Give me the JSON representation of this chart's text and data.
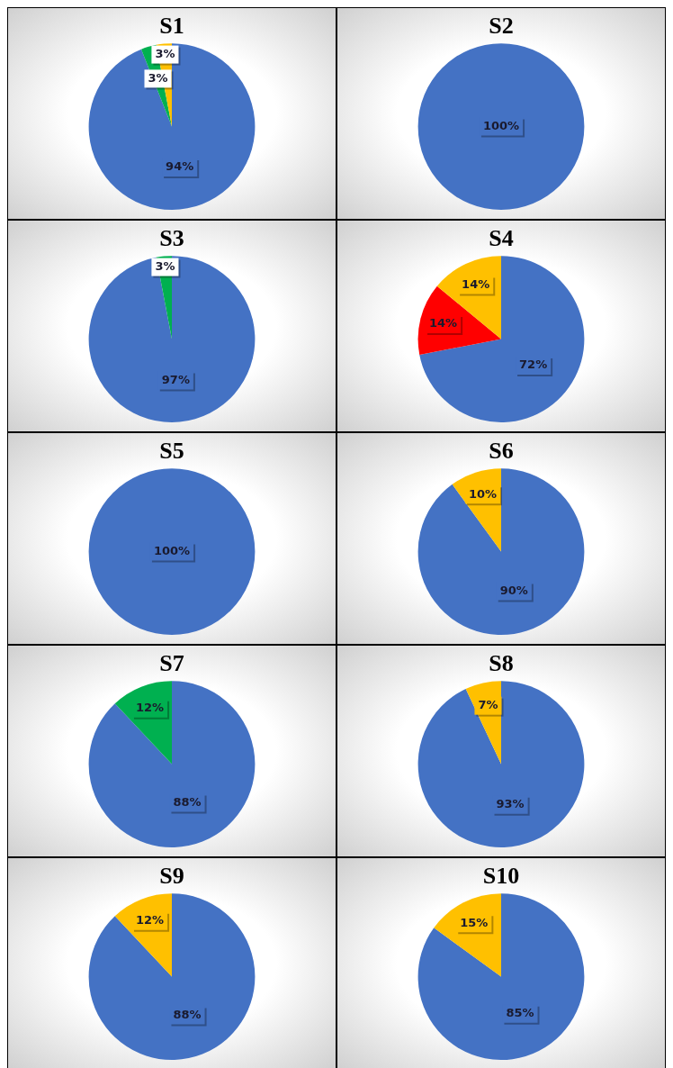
{
  "chart_data": [
    {
      "type": "pie",
      "title": "S1",
      "categories": [
        null,
        null,
        null
      ],
      "values": [
        94,
        3,
        3
      ],
      "colors": [
        "#4472c4",
        "#00b050",
        "#ffc000"
      ],
      "value_labels": [
        "94%",
        "3%",
        "3%"
      ]
    },
    {
      "type": "pie",
      "title": "S2",
      "categories": [
        null
      ],
      "values": [
        100
      ],
      "colors": [
        "#4472c4"
      ],
      "value_labels": [
        "100%"
      ]
    },
    {
      "type": "pie",
      "title": "S3",
      "categories": [
        null,
        null
      ],
      "values": [
        97,
        3
      ],
      "colors": [
        "#4472c4",
        "#00b050"
      ],
      "value_labels": [
        "97%",
        "3%"
      ]
    },
    {
      "type": "pie",
      "title": "S4",
      "categories": [
        null,
        null,
        null
      ],
      "values": [
        72,
        14,
        14
      ],
      "colors": [
        "#4472c4",
        "#ff0000",
        "#ffc000"
      ],
      "value_labels": [
        "72%",
        "14%",
        "14%"
      ]
    },
    {
      "type": "pie",
      "title": "S5",
      "categories": [
        null
      ],
      "values": [
        100
      ],
      "colors": [
        "#4472c4"
      ],
      "value_labels": [
        "100%"
      ]
    },
    {
      "type": "pie",
      "title": "S6",
      "categories": [
        null,
        null
      ],
      "values": [
        90,
        10
      ],
      "colors": [
        "#4472c4",
        "#ffc000"
      ],
      "value_labels": [
        "90%",
        "10%"
      ]
    },
    {
      "type": "pie",
      "title": "S7",
      "categories": [
        null,
        null
      ],
      "values": [
        88,
        12
      ],
      "colors": [
        "#4472c4",
        "#00b050"
      ],
      "value_labels": [
        "88%",
        "12%"
      ]
    },
    {
      "type": "pie",
      "title": "S8",
      "categories": [
        null,
        null
      ],
      "values": [
        93,
        7
      ],
      "colors": [
        "#4472c4",
        "#ffc000"
      ],
      "value_labels": [
        "93%",
        "7%"
      ]
    },
    {
      "type": "pie",
      "title": "S9",
      "categories": [
        null,
        null
      ],
      "values": [
        88,
        12
      ],
      "colors": [
        "#4472c4",
        "#ffc000"
      ],
      "value_labels": [
        "88%",
        "12%"
      ]
    },
    {
      "type": "pie",
      "title": "S10",
      "categories": [
        null,
        null
      ],
      "values": [
        85,
        15
      ],
      "colors": [
        "#4472c4",
        "#ffc000"
      ],
      "value_labels": [
        "85%",
        "15%"
      ]
    }
  ]
}
